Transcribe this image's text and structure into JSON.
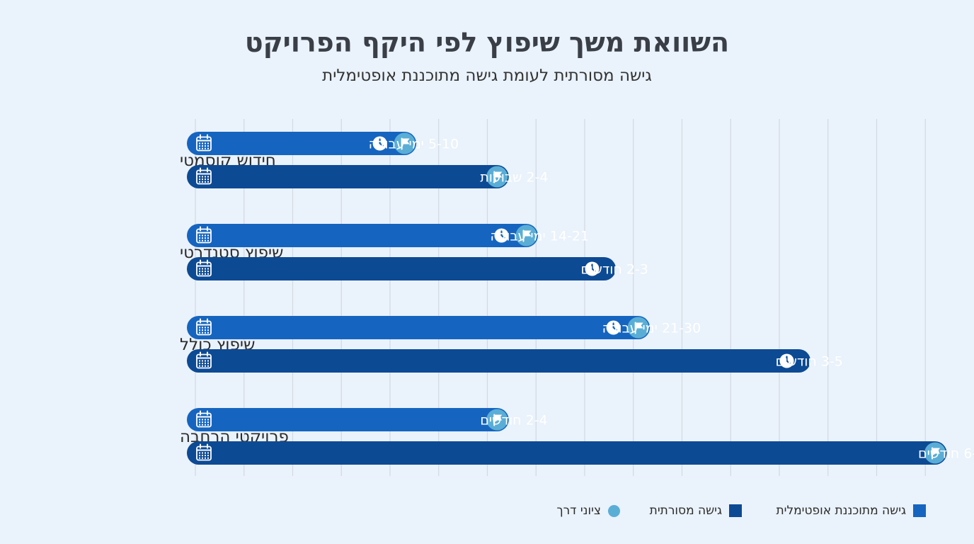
{
  "header": {
    "title": "השוואת משך שיפוץ לפי היקף הפרויקט",
    "subtitle": "גישה מסורתית לעומת גישה מתוכננת אופטימלית"
  },
  "colors": {
    "optimized": "#1565c0",
    "traditional": "#0d4a94",
    "milestone": "#5aaed6",
    "grid": "#d3d9e1",
    "background": "#eaf2fb"
  },
  "legend": {
    "optimized": "גישה מתוכננת אופטימלית",
    "traditional": "גישה מסורתית",
    "milestone": "ציוני דרך"
  },
  "chart_data": {
    "type": "bar",
    "orientation": "horizontal",
    "categories": [
      "חידוש קוסמטי",
      "שיפוץ סטנדרטי",
      "שיפוץ כולל",
      "פרויקטי הרחבה"
    ],
    "series": [
      {
        "name": "גישה מתוכננת אופטימלית",
        "key": "optimized",
        "labels": [
          "5-10 ימי עבודה",
          "14-21 ימי עבודה",
          "21-30 ימי עבודה",
          "2-4 חודשים"
        ],
        "values": [
          4.3,
          6.8,
          9.1,
          6.2
        ],
        "end_icon": [
          "flag",
          "flag",
          "flag",
          "flag"
        ],
        "label_icon": [
          "clock",
          "clock",
          "clock",
          "none"
        ]
      },
      {
        "name": "גישה מסורתית",
        "key": "traditional",
        "labels": [
          "2-4 שבועות",
          "2-3 חודשים",
          "3-5 חודשים",
          "6-12 חודשים"
        ],
        "values": [
          6.2,
          8.4,
          12.4,
          15.2
        ],
        "end_icon": [
          "flag",
          "none",
          "none",
          "flag"
        ],
        "label_icon": [
          "none",
          "clock",
          "clock",
          "none"
        ]
      }
    ],
    "x_range": [
      0,
      15.2
    ],
    "grid": true,
    "legend_position": "bottom-right"
  }
}
